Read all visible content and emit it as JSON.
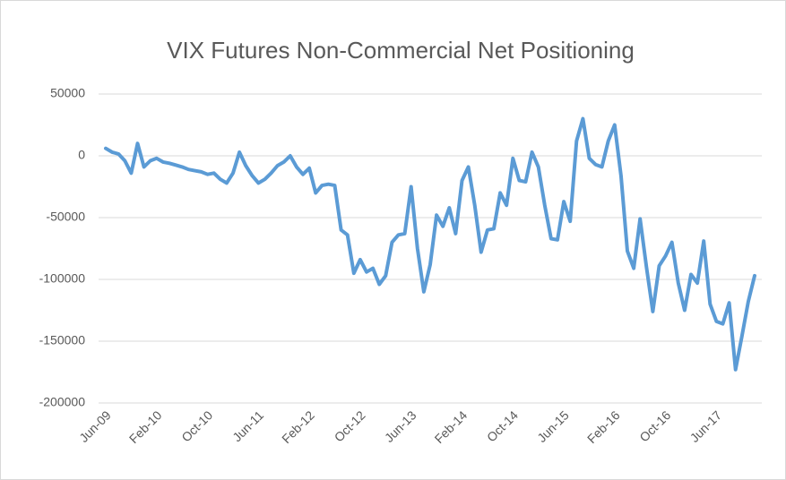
{
  "chart_data": {
    "type": "line",
    "title": "VIX Futures Non-Commercial  Net Positioning",
    "categories": [
      "Jun-09",
      null,
      null,
      null,
      null,
      null,
      null,
      null,
      "Feb-10",
      null,
      null,
      null,
      null,
      null,
      null,
      null,
      "Oct-10",
      null,
      null,
      null,
      null,
      null,
      null,
      null,
      "Jun-11",
      null,
      null,
      null,
      null,
      null,
      null,
      null,
      "Feb-12",
      null,
      null,
      null,
      null,
      null,
      null,
      null,
      "Oct-12",
      null,
      null,
      null,
      null,
      null,
      null,
      null,
      "Jun-13",
      null,
      null,
      null,
      null,
      null,
      null,
      null,
      "Feb-14",
      null,
      null,
      null,
      null,
      null,
      null,
      null,
      "Oct-14",
      null,
      null,
      null,
      null,
      null,
      null,
      null,
      "Jun-15",
      null,
      null,
      null,
      null,
      null,
      null,
      null,
      "Feb-16",
      null,
      null,
      null,
      null,
      null,
      null,
      null,
      "Oct-16",
      null,
      null,
      null,
      null,
      null,
      null,
      null,
      "Jun-17",
      null,
      null,
      null,
      null,
      null,
      null
    ],
    "values": [
      6000,
      3000,
      1500,
      -4000,
      -14000,
      10000,
      -9000,
      -4000,
      -2000,
      -5000,
      -6000,
      -7500,
      -9000,
      -11000,
      -12000,
      -13000,
      -15000,
      -14000,
      -19000,
      -22000,
      -14000,
      3000,
      -8000,
      -16000,
      -22000,
      -19000,
      -14000,
      -8000,
      -5000,
      0,
      -9000,
      -15000,
      -10000,
      -30000,
      -24000,
      -23000,
      -24000,
      -60000,
      -64000,
      -95000,
      -84000,
      -94000,
      -91000,
      -104000,
      -97000,
      -70000,
      -64000,
      -63000,
      -25000,
      -75000,
      -110000,
      -88000,
      -48000,
      -57000,
      -42000,
      -63000,
      -20000,
      -9000,
      -40000,
      -78000,
      -60000,
      -59000,
      -30000,
      -40000,
      -2000,
      -20000,
      -21000,
      3000,
      -9000,
      -40000,
      -67000,
      -68000,
      -37000,
      -53000,
      12000,
      30000,
      -2000,
      -7000,
      -9000,
      12000,
      25000,
      -16000,
      -77000,
      -91000,
      -51000,
      -90000,
      -126000,
      -89000,
      -81000,
      -70000,
      -103000,
      -125000,
      -96000,
      -103000,
      -69000,
      -120000,
      -134000,
      -136000,
      -119000,
      -173000,
      -146000,
      -118000,
      -97000
    ],
    "color": "#5b9bd5",
    "ylim": [
      -200000,
      50000
    ],
    "yticks": [
      -200000,
      -150000,
      -100000,
      -50000,
      0,
      50000
    ],
    "grid": true
  }
}
